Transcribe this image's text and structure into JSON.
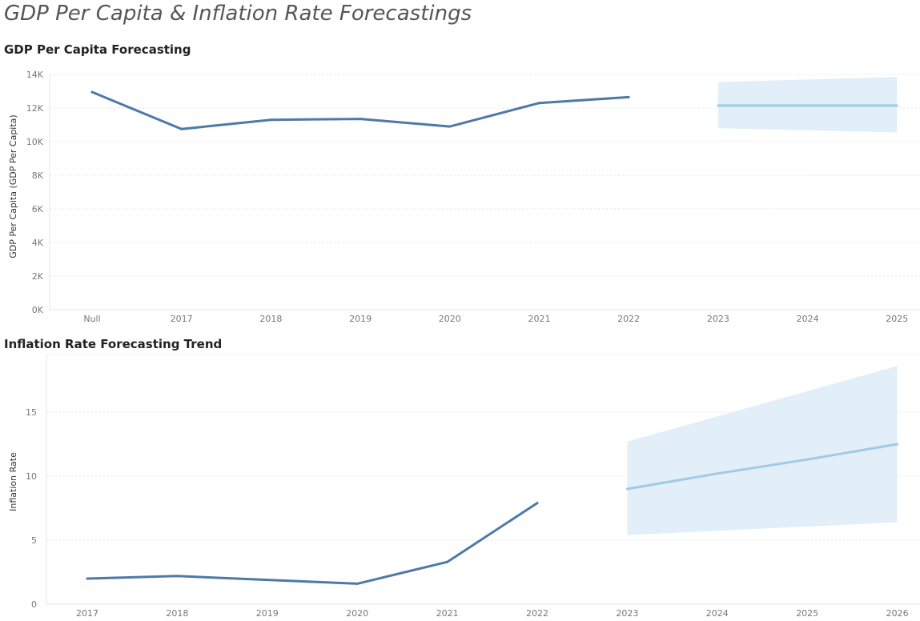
{
  "page": {
    "title": "GDP Per Capita & Inflation Rate Forecastings"
  },
  "colors": {
    "actual": "#4e79a7",
    "forecast": "#a0cbe8",
    "band": "#e2eef8"
  },
  "chart_data": [
    {
      "type": "line",
      "title": "GDP Per Capita Forecasting",
      "ylabel": "GDP Per Capita (GDP Per Capita)",
      "xlabel": "",
      "categories": [
        "Null",
        "2017",
        "2018",
        "2019",
        "2020",
        "2021",
        "2022",
        "2023",
        "2024",
        "2025"
      ],
      "yticks": [
        0,
        2000,
        4000,
        6000,
        8000,
        10000,
        12000,
        14000
      ],
      "ytick_labels": [
        "0K",
        "2K",
        "4K",
        "6K",
        "8K",
        "10K",
        "12K",
        "14K"
      ],
      "ylim": [
        0,
        14000
      ],
      "grid": true,
      "series": [
        {
          "role": "actual",
          "x": [
            "Null",
            "2017",
            "2018",
            "2019",
            "2020",
            "2021",
            "2022"
          ],
          "values": [
            12950,
            10750,
            11300,
            11350,
            10900,
            12300,
            12650
          ]
        },
        {
          "role": "forecast",
          "x": [
            "2023",
            "2025"
          ],
          "values": [
            12150,
            12150
          ]
        }
      ],
      "band": {
        "x": [
          "2023",
          "2025"
        ],
        "upper": [
          13550,
          13850
        ],
        "lower": [
          10800,
          10550
        ]
      }
    },
    {
      "type": "line",
      "title": "Inflation Rate Forecasting Trend",
      "ylabel": "Inflation Rate",
      "xlabel": "",
      "categories": [
        "2017",
        "2018",
        "2019",
        "2020",
        "2021",
        "2022",
        "2023",
        "2024",
        "2025",
        "2026"
      ],
      "yticks": [
        0,
        5,
        10,
        15
      ],
      "ytick_labels": [
        "0",
        "5",
        "10",
        "15"
      ],
      "ylim": [
        0,
        19.5
      ],
      "grid": true,
      "series": [
        {
          "role": "actual",
          "x": [
            "2017",
            "2018",
            "2019",
            "2020",
            "2021",
            "2022"
          ],
          "values": [
            2.0,
            2.2,
            1.9,
            1.6,
            3.3,
            7.9
          ]
        },
        {
          "role": "forecast",
          "x": [
            "2023",
            "2024",
            "2025",
            "2026"
          ],
          "values": [
            9.0,
            10.2,
            11.3,
            12.5
          ]
        }
      ],
      "band": {
        "x": [
          "2023",
          "2026"
        ],
        "upper": [
          12.7,
          18.6
        ],
        "lower": [
          5.4,
          6.4
        ]
      }
    }
  ]
}
